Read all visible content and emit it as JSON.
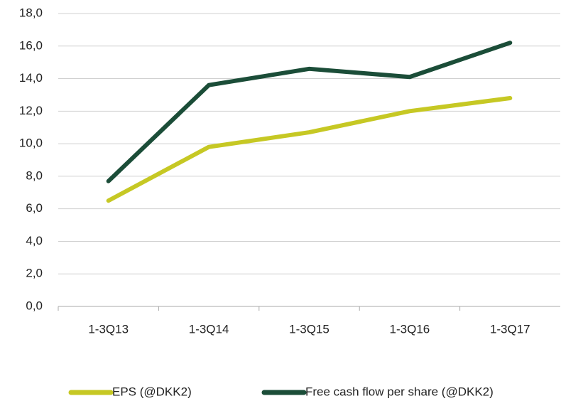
{
  "chart_data": {
    "type": "line",
    "categories": [
      "1-3Q13",
      "1-3Q14",
      "1-3Q15",
      "1-3Q16",
      "1-3Q17"
    ],
    "series": [
      {
        "name": "EPS (@DKK2)",
        "color": "#c6c824",
        "values": [
          6.5,
          9.8,
          10.7,
          12.0,
          12.8
        ]
      },
      {
        "name": "Free cash flow per share (@DKK2)",
        "color": "#1b4d38",
        "values": [
          7.7,
          13.6,
          14.6,
          14.1,
          16.2
        ]
      }
    ],
    "ylim": [
      0,
      18
    ],
    "yticks": [
      {
        "value": 0,
        "label": "0,0"
      },
      {
        "value": 2,
        "label": "2,0"
      },
      {
        "value": 4,
        "label": "4,0"
      },
      {
        "value": 6,
        "label": "6,0"
      },
      {
        "value": 8,
        "label": "8,0"
      },
      {
        "value": 10,
        "label": "10,0"
      },
      {
        "value": 12,
        "label": "12,0"
      },
      {
        "value": 14,
        "label": "14,0"
      },
      {
        "value": 16,
        "label": "16,0"
      },
      {
        "value": 18,
        "label": "18,0"
      }
    ],
    "grid": true,
    "legend": "bottom"
  }
}
